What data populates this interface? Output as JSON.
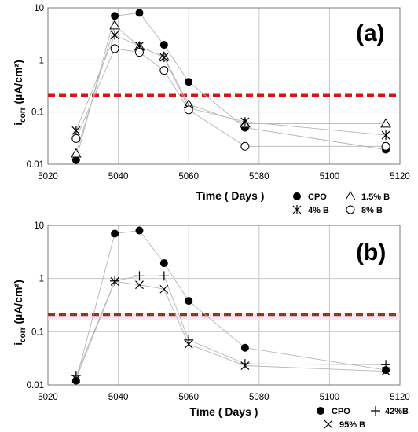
{
  "chart_data": [
    {
      "panel": "(a)",
      "type": "scatter",
      "xlabel": "Time  ( Days )",
      "ylabel": "i",
      "ylabel_sub": "corr",
      "ylabel_unit": " (µA/cm²)",
      "x_ticks": [
        "5020",
        "5040",
        "5060",
        "5080",
        "5100",
        "5120"
      ],
      "y_ticks": [
        "0.01",
        "0.1",
        "1",
        "10"
      ],
      "xlim": [
        5020,
        5120
      ],
      "ylim": [
        0.01,
        10
      ],
      "y_scale": "log",
      "grid": true,
      "threshold": {
        "y": 0.21,
        "color": "#dd1111",
        "style": "dashed"
      },
      "legend_position": "bottom-right",
      "series": [
        {
          "name": "CPO",
          "marker": "filled-circle",
          "x": [
            5028,
            5039,
            5046,
            5053,
            5060,
            5076,
            5116
          ],
          "y": [
            0.012,
            7.0,
            8.0,
            1.95,
            0.38,
            0.05,
            0.019
          ]
        },
        {
          "name": "1.5% B",
          "marker": "open-triangle",
          "x": [
            5028,
            5039,
            5046,
            5053,
            5060,
            5076,
            5116
          ],
          "y": [
            0.016,
            4.6,
            1.8,
            1.15,
            0.14,
            0.06,
            0.06
          ]
        },
        {
          "name": "4% B",
          "marker": "asterisk",
          "x": [
            5028,
            5039,
            5046,
            5053,
            5060,
            5076,
            5116
          ],
          "y": [
            0.044,
            3.0,
            1.85,
            1.12,
            0.12,
            0.065,
            0.036
          ]
        },
        {
          "name": "8% B",
          "marker": "open-circle",
          "x": [
            5028,
            5039,
            5046,
            5053,
            5060,
            5076,
            5116
          ],
          "y": [
            0.031,
            1.65,
            1.4,
            0.63,
            0.11,
            0.022,
            0.022
          ]
        }
      ]
    },
    {
      "panel": "(b)",
      "type": "scatter",
      "xlabel": "Time  ( Days )",
      "ylabel": "i",
      "ylabel_sub": "corr",
      "ylabel_unit": " (µA/cm²)",
      "x_ticks": [
        "5020",
        "5040",
        "5060",
        "5080",
        "5100",
        "5120"
      ],
      "y_ticks": [
        "0.01",
        "0.1",
        "1",
        "10"
      ],
      "xlim": [
        5020,
        5120
      ],
      "ylim": [
        0.01,
        10
      ],
      "y_scale": "log",
      "grid": true,
      "threshold": {
        "y": 0.21,
        "color": "#8b3a1a",
        "style": "dashed"
      },
      "legend_position": "bottom-right",
      "series": [
        {
          "name": "CPO",
          "marker": "filled-circle",
          "x": [
            5028,
            5039,
            5046,
            5053,
            5060,
            5076,
            5116
          ],
          "y": [
            0.012,
            7.0,
            8.0,
            1.95,
            0.38,
            0.05,
            0.019
          ]
        },
        {
          "name": "42%B",
          "marker": "plus",
          "x": [
            5028,
            5039,
            5046,
            5053,
            5060,
            5076,
            5116
          ],
          "y": [
            0.015,
            0.9,
            1.12,
            1.12,
            0.07,
            0.025,
            0.024
          ]
        },
        {
          "name": "95% B",
          "marker": "cross",
          "x": [
            5028,
            5039,
            5046,
            5053,
            5060,
            5076,
            5116
          ],
          "y": [
            0.013,
            0.88,
            0.76,
            0.63,
            0.058,
            0.023,
            0.018
          ]
        }
      ]
    }
  ]
}
